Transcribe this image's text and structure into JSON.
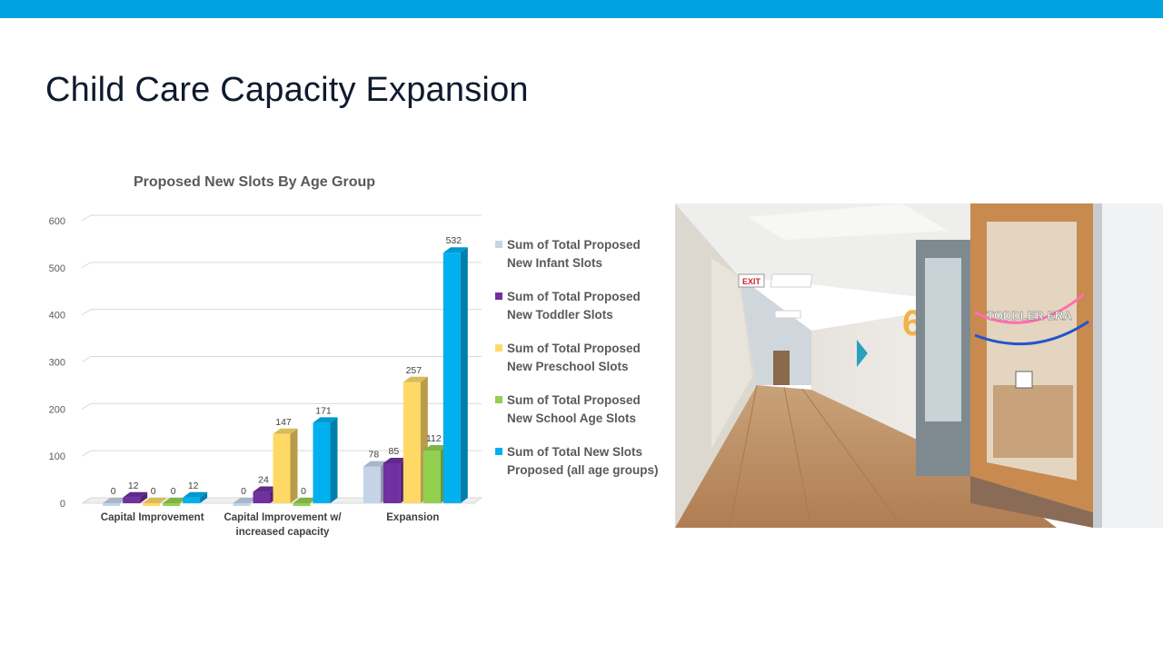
{
  "slide": {
    "title": "Child Care Capacity Expansion"
  },
  "colors": {
    "top_bar": "#00a3e0",
    "infant": "#c5d3e8",
    "toddler": "#7030a0",
    "preschool": "#ffd966",
    "school_age": "#92d050",
    "total": "#00b0f0"
  },
  "chart_data": {
    "type": "bar",
    "title": "Proposed New Slots By Age Group",
    "categories": [
      "Capital Improvement",
      "Capital Improvement w/ increased capacity",
      "Expansion"
    ],
    "series": [
      {
        "name": "Sum of Total Proposed New Infant Slots",
        "color": "#c5d3e8",
        "values": [
          0,
          0,
          78
        ]
      },
      {
        "name": "Sum of Total Proposed New Toddler Slots",
        "color": "#7030a0",
        "values": [
          12,
          24,
          85
        ]
      },
      {
        "name": "Sum of Total Proposed New Preschool Slots",
        "color": "#ffd966",
        "values": [
          0,
          147,
          257
        ]
      },
      {
        "name": "Sum of Total Proposed New School Age Slots",
        "color": "#92d050",
        "values": [
          0,
          0,
          112
        ]
      },
      {
        "name": "Sum of Total New Slots Proposed (all age groups)",
        "color": "#00b0f0",
        "values": [
          12,
          171,
          532
        ]
      }
    ],
    "ylim": [
      0,
      600
    ],
    "yticks": [
      0,
      100,
      200,
      300,
      400,
      500,
      600
    ],
    "grid": true,
    "legend_position": "right",
    "style": "3d-clustered-column"
  },
  "photo": {
    "exit_sign": "EXIT",
    "room_number": "6",
    "banner_text": "TODDLER ERA"
  }
}
